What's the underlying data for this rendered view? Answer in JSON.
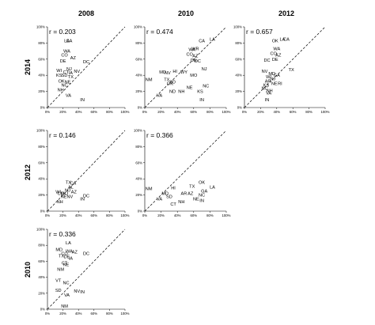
{
  "figure": {
    "column_titles": [
      "2008",
      "2010",
      "2012"
    ],
    "row_titles": [
      "2014",
      "2012",
      "2010"
    ]
  },
  "chart_data": [
    {
      "type": "scatter",
      "x_year": "2008",
      "y_year": "2014",
      "annotation": "r = 0.203",
      "xlim": [
        0,
        100
      ],
      "ylim": [
        0,
        100
      ],
      "x_ticks": [
        "0%",
        "20%",
        "40%",
        "60%",
        "80%",
        "100%"
      ],
      "y_ticks": [
        "0%",
        "20%",
        "40%",
        "60%",
        "80%",
        "100%"
      ],
      "reference_line": "dashed y = x",
      "points": [
        {
          "label": "LA",
          "x": 25,
          "y": 83
        },
        {
          "label": "CA",
          "x": 28,
          "y": 83
        },
        {
          "label": "WA",
          "x": 25,
          "y": 70
        },
        {
          "label": "CO",
          "x": 22,
          "y": 65
        },
        {
          "label": "AZ",
          "x": 33,
          "y": 62
        },
        {
          "label": "DC",
          "x": 50,
          "y": 57
        },
        {
          "label": "DE",
          "x": 20,
          "y": 58
        },
        {
          "label": "NJ",
          "x": 28,
          "y": 48
        },
        {
          "label": "NV",
          "x": 38,
          "y": 45
        },
        {
          "label": "WI",
          "x": 15,
          "y": 46
        },
        {
          "label": "CT",
          "x": 24,
          "y": 44
        },
        {
          "label": "IA",
          "x": 30,
          "y": 43
        },
        {
          "label": "KS",
          "x": 15,
          "y": 40
        },
        {
          "label": "SD",
          "x": 22,
          "y": 40
        },
        {
          "label": "TX",
          "x": 30,
          "y": 38
        },
        {
          "label": "OK",
          "x": 18,
          "y": 33
        },
        {
          "label": "NE",
          "x": 26,
          "y": 32
        },
        {
          "label": "NC",
          "x": 22,
          "y": 28
        },
        {
          "label": "NH",
          "x": 17,
          "y": 22
        },
        {
          "label": "VA",
          "x": 27,
          "y": 15
        },
        {
          "label": "IN",
          "x": 45,
          "y": 10
        }
      ]
    },
    {
      "type": "scatter",
      "x_year": "2010",
      "y_year": "2014",
      "annotation": "r = 0.474",
      "xlim": [
        0,
        100
      ],
      "ylim": [
        0,
        100
      ],
      "x_ticks": [
        "0%",
        "20%",
        "40%",
        "60%",
        "80%",
        "100%"
      ],
      "y_ticks": [
        "0%",
        "20%",
        "40%",
        "60%",
        "80%",
        "100%"
      ],
      "reference_line": "dashed y = x",
      "points": [
        {
          "label": "CA",
          "x": 70,
          "y": 83
        },
        {
          "label": "LA",
          "x": 83,
          "y": 85
        },
        {
          "label": "WA",
          "x": 58,
          "y": 72
        },
        {
          "label": "WR",
          "x": 62,
          "y": 73
        },
        {
          "label": "CO",
          "x": 55,
          "y": 66
        },
        {
          "label": "AZ",
          "x": 62,
          "y": 64
        },
        {
          "label": "DE",
          "x": 60,
          "y": 59
        },
        {
          "label": "DC",
          "x": 65,
          "y": 58
        },
        {
          "label": "NJ",
          "x": 73,
          "y": 48
        },
        {
          "label": "MD",
          "x": 22,
          "y": 44
        },
        {
          "label": "NV",
          "x": 28,
          "y": 43
        },
        {
          "label": "HI",
          "x": 37,
          "y": 45
        },
        {
          "label": "WY",
          "x": 48,
          "y": 44
        },
        {
          "label": "MO",
          "x": 60,
          "y": 40
        },
        {
          "label": "NM",
          "x": 5,
          "y": 35
        },
        {
          "label": "TX",
          "x": 27,
          "y": 35
        },
        {
          "label": "OK",
          "x": 31,
          "y": 30
        },
        {
          "label": "SD",
          "x": 34,
          "y": 32
        },
        {
          "label": "NC",
          "x": 75,
          "y": 27
        },
        {
          "label": "ND",
          "x": 34,
          "y": 20
        },
        {
          "label": "NH",
          "x": 45,
          "y": 20
        },
        {
          "label": "NE",
          "x": 55,
          "y": 25
        },
        {
          "label": "KS",
          "x": 68,
          "y": 20
        },
        {
          "label": "VA",
          "x": 18,
          "y": 15
        },
        {
          "label": "IN",
          "x": 70,
          "y": 10
        }
      ]
    },
    {
      "type": "scatter",
      "x_year": "2012",
      "y_year": "2014",
      "annotation": "r = 0.657",
      "xlim": [
        0,
        100
      ],
      "ylim": [
        0,
        100
      ],
      "x_ticks": [
        "0%",
        "20%",
        "40%",
        "60%",
        "80%",
        "100%"
      ],
      "y_ticks": [
        "0%",
        "20%",
        "40%",
        "60%",
        "80%",
        "100%"
      ],
      "reference_line": "dashed y = x",
      "points": [
        {
          "label": "OK",
          "x": 38,
          "y": 83
        },
        {
          "label": "LA",
          "x": 47,
          "y": 85
        },
        {
          "label": "CA",
          "x": 52,
          "y": 85
        },
        {
          "label": "WA",
          "x": 40,
          "y": 73
        },
        {
          "label": "CO",
          "x": 36,
          "y": 67
        },
        {
          "label": "AZ",
          "x": 42,
          "y": 65
        },
        {
          "label": "DE",
          "x": 38,
          "y": 60
        },
        {
          "label": "DC",
          "x": 28,
          "y": 59
        },
        {
          "label": "TX",
          "x": 58,
          "y": 47
        },
        {
          "label": "NV",
          "x": 25,
          "y": 45
        },
        {
          "label": "MD",
          "x": 34,
          "y": 42
        },
        {
          "label": "WI",
          "x": 30,
          "y": 38
        },
        {
          "label": "GA",
          "x": 40,
          "y": 40
        },
        {
          "label": "NJ",
          "x": 35,
          "y": 36
        },
        {
          "label": "AR",
          "x": 29,
          "y": 33
        },
        {
          "label": "RI",
          "x": 44,
          "y": 30
        },
        {
          "label": "NE",
          "x": 37,
          "y": 30
        },
        {
          "label": "KS",
          "x": 27,
          "y": 28
        },
        {
          "label": "NC",
          "x": 25,
          "y": 24
        },
        {
          "label": "NH",
          "x": 31,
          "y": 21
        },
        {
          "label": "VA",
          "x": 30,
          "y": 18
        },
        {
          "label": "IN",
          "x": 28,
          "y": 10
        }
      ]
    },
    {
      "type": "scatter",
      "x_year": "2008",
      "y_year": "2012",
      "annotation": "r = 0.146",
      "xlim": [
        0,
        100
      ],
      "ylim": [
        0,
        100
      ],
      "x_ticks": [
        "0%",
        "20%",
        "40%",
        "60%",
        "80%",
        "100%"
      ],
      "y_ticks": [
        "0%",
        "20%",
        "40%",
        "60%",
        "80%",
        "100%"
      ],
      "reference_line": "dashed y = x",
      "points": [
        {
          "label": "TX",
          "x": 27,
          "y": 36
        },
        {
          "label": "CA",
          "x": 33,
          "y": 35
        },
        {
          "label": "AL",
          "x": 30,
          "y": 30
        },
        {
          "label": "AZ",
          "x": 34,
          "y": 24
        },
        {
          "label": "MO",
          "x": 22,
          "y": 22
        },
        {
          "label": "CO",
          "x": 17,
          "y": 22
        },
        {
          "label": "NV",
          "x": 29,
          "y": 18
        },
        {
          "label": "DC",
          "x": 50,
          "y": 19
        },
        {
          "label": "WI",
          "x": 14,
          "y": 24
        },
        {
          "label": "NJ",
          "x": 26,
          "y": 26
        },
        {
          "label": "NE",
          "x": 21,
          "y": 18
        },
        {
          "label": "NH",
          "x": 16,
          "y": 12
        },
        {
          "label": "IN",
          "x": 45,
          "y": 15
        }
      ]
    },
    {
      "type": "scatter",
      "x_year": "2010",
      "y_year": "2012",
      "annotation": "r = 0.366",
      "xlim": [
        0,
        100
      ],
      "ylim": [
        0,
        100
      ],
      "x_ticks": [
        "0%",
        "20%",
        "40%",
        "60%",
        "80%",
        "100%"
      ],
      "y_ticks": [
        "0%",
        "20%",
        "40%",
        "60%",
        "80%",
        "100%"
      ],
      "reference_line": "dashed y = x",
      "points": [
        {
          "label": "OK",
          "x": 70,
          "y": 36
        },
        {
          "label": "LA",
          "x": 83,
          "y": 30
        },
        {
          "label": "TX",
          "x": 58,
          "y": 31
        },
        {
          "label": "GA",
          "x": 73,
          "y": 25
        },
        {
          "label": "HI",
          "x": 35,
          "y": 29
        },
        {
          "label": "NM",
          "x": 5,
          "y": 28
        },
        {
          "label": "MD",
          "x": 25,
          "y": 22
        },
        {
          "label": "VA",
          "x": 18,
          "y": 15
        },
        {
          "label": "SD",
          "x": 30,
          "y": 18
        },
        {
          "label": "AR",
          "x": 48,
          "y": 22
        },
        {
          "label": "AZ",
          "x": 56,
          "y": 22
        },
        {
          "label": "NC",
          "x": 70,
          "y": 20
        },
        {
          "label": "NE",
          "x": 63,
          "y": 15
        },
        {
          "label": "NH",
          "x": 45,
          "y": 12
        },
        {
          "label": "CT",
          "x": 35,
          "y": 9
        },
        {
          "label": "IN",
          "x": 70,
          "y": 13
        }
      ]
    },
    {
      "type": "scatter",
      "x_year": "2008",
      "y_year": "2010",
      "annotation": "r = 0.336",
      "xlim": [
        0,
        100
      ],
      "ylim": [
        0,
        100
      ],
      "x_ticks": [
        "0%",
        "20%",
        "40%",
        "60%",
        "80%",
        "100%"
      ],
      "y_ticks": [
        "0%",
        "20%",
        "40%",
        "60%",
        "80%",
        "100%"
      ],
      "reference_line": "dashed y = x",
      "points": [
        {
          "label": "LA",
          "x": 27,
          "y": 83
        },
        {
          "label": "WA",
          "x": 28,
          "y": 73
        },
        {
          "label": "MD",
          "x": 15,
          "y": 75
        },
        {
          "label": "AZ",
          "x": 35,
          "y": 72
        },
        {
          "label": "DC",
          "x": 50,
          "y": 70
        },
        {
          "label": "CO",
          "x": 22,
          "y": 70
        },
        {
          "label": "TX",
          "x": 18,
          "y": 67
        },
        {
          "label": "DE",
          "x": 25,
          "y": 66
        },
        {
          "label": "IA",
          "x": 30,
          "y": 64
        },
        {
          "label": "CT",
          "x": 22,
          "y": 58
        },
        {
          "label": "NE",
          "x": 24,
          "y": 56
        },
        {
          "label": "NM",
          "x": 17,
          "y": 50
        },
        {
          "label": "VT",
          "x": 14,
          "y": 36
        },
        {
          "label": "SD",
          "x": 14,
          "y": 24
        },
        {
          "label": "NC",
          "x": 24,
          "y": 33
        },
        {
          "label": "NV",
          "x": 38,
          "y": 23
        },
        {
          "label": "VA",
          "x": 25,
          "y": 18
        },
        {
          "label": "IN",
          "x": 45,
          "y": 22
        },
        {
          "label": "NM",
          "x": 22,
          "y": 4
        }
      ]
    }
  ]
}
